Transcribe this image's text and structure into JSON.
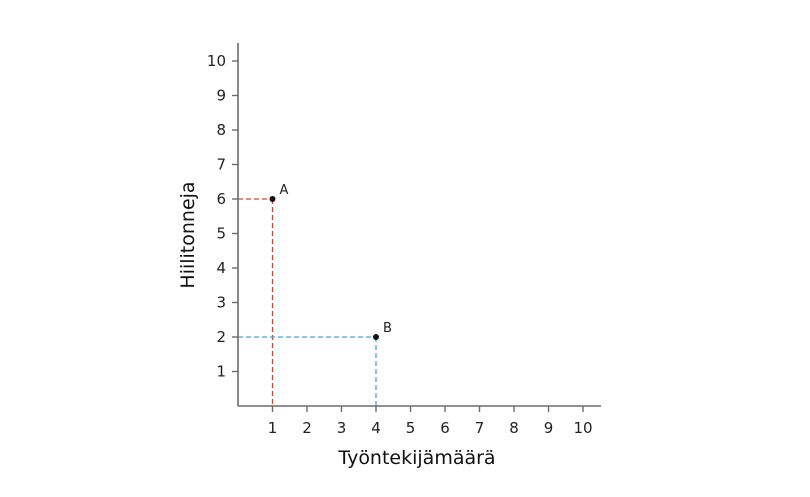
{
  "chart_data": {
    "type": "scatter",
    "title": "",
    "xlabel": "Työntekijämäärä",
    "ylabel": "Hiilitonneja",
    "xlim": [
      0,
      10.5
    ],
    "ylim": [
      0,
      10.5
    ],
    "x_ticks": [
      1,
      2,
      3,
      4,
      5,
      6,
      7,
      8,
      9,
      10
    ],
    "y_ticks": [
      1,
      2,
      3,
      4,
      5,
      6,
      7,
      8,
      9,
      10
    ],
    "grid": false,
    "points": [
      {
        "label": "A",
        "x": 1,
        "y": 6,
        "guide_color": "#d0472f"
      },
      {
        "label": "B",
        "x": 4,
        "y": 2,
        "guide_color": "#4aa3d8"
      }
    ]
  },
  "colors": {
    "axis": "#6b6b6b",
    "point": "#111111",
    "guide_a": "#d0472f",
    "guide_b": "#4aa3d8"
  }
}
